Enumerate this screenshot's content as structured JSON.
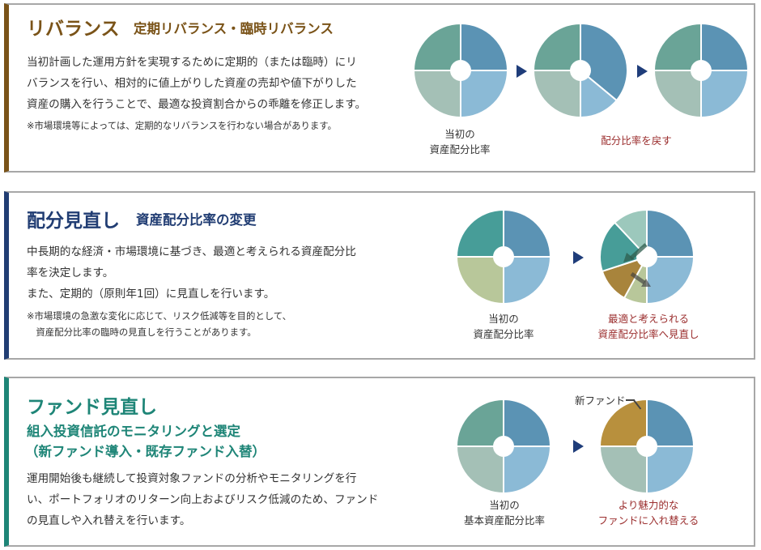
{
  "colors": {
    "teal": "#6aa497",
    "steel_blue": "#5b93b4",
    "light_blue": "#8bbad6",
    "light_green_gray": "#a4c0b6",
    "dark_teal": "#479d98",
    "olive_light": "#b8c79a",
    "mustard": "#b8903d",
    "brown_wedge": "#a8843c",
    "mint": "#9cc8bc",
    "arrow_navy": "#1f3d7a",
    "caption_red": "#9b2e2e"
  },
  "sections": [
    {
      "title": "リバランス",
      "subtitle": "定期リバランス・臨時リバランス",
      "title_color": "#7a5318",
      "body": [
        "当初計画した運用方針を実現するために定期的（または臨時）にリ",
        "バランスを行い、相対的に値上がりした資産の売却や値下がりした",
        "資産の購入を行うことで、最適な投資割合からの乖離を修正します。"
      ],
      "note": [
        "※市場環境等によっては、定期的なリバランスを行わない場合があります。"
      ],
      "captions": {
        "left": [
          "当初の",
          "資産配分比率"
        ],
        "right": [
          "配分比率を戻す"
        ]
      }
    },
    {
      "title": "配分見直し",
      "subtitle": "資産配分比率の変更",
      "title_color": "#213d73",
      "body": [
        "中長期的な経済・市場環境に基づき、最適と考えられる資産配分比",
        "率を決定します。",
        "また、定期的（原則年1回）に見直しを行います。"
      ],
      "note": [
        "※市場環境の急激な変化に応じて、リスク低減等を目的として、",
        "　資産配分比率の臨時の見直しを行うことがあります。"
      ],
      "captions": {
        "left": [
          "当初の",
          "資産配分比率"
        ],
        "right": [
          "最適と考えられる",
          "資産配分比率へ見直し"
        ]
      }
    },
    {
      "title": "ファンド見直し",
      "subtitle_lines": [
        "組入投資信託のモニタリングと選定",
        "（新ファンド導入・既存ファンド入替）"
      ],
      "title_color": "#1e8577",
      "body": [
        "運用開始後も継続して投資対象ファンドの分析やモニタリングを行",
        "い、ポートフォリオのリターン向上およびリスク低減のため、ファンド",
        "の見直しや入れ替えを行います。"
      ],
      "captions": {
        "left": [
          "当初の",
          "基本資産配分比率"
        ],
        "right": [
          "より魅力的な",
          "ファンドに入れ替える"
        ]
      },
      "new_fund_label": "新ファンド"
    }
  ],
  "pies": {
    "rebalance_initial": [
      {
        "color": "#5b93b4",
        "share": 0.25
      },
      {
        "color": "#8bbad6",
        "share": 0.25
      },
      {
        "color": "#a4c0b6",
        "share": 0.25
      },
      {
        "color": "#6aa497",
        "share": 0.25
      }
    ],
    "rebalance_drift": [
      {
        "color": "#5b93b4",
        "share": 0.36
      },
      {
        "color": "#8bbad6",
        "share": 0.14
      },
      {
        "color": "#a4c0b6",
        "share": 0.25
      },
      {
        "color": "#6aa497",
        "share": 0.25
      }
    ],
    "rebalance_restored": [
      {
        "color": "#5b93b4",
        "share": 0.25
      },
      {
        "color": "#8bbad6",
        "share": 0.25
      },
      {
        "color": "#a4c0b6",
        "share": 0.25
      },
      {
        "color": "#6aa497",
        "share": 0.25
      }
    ],
    "review_initial": [
      {
        "color": "#5b93b4",
        "share": 0.25
      },
      {
        "color": "#8bbad6",
        "share": 0.25
      },
      {
        "color": "#b8c79a",
        "share": 0.25
      },
      {
        "color": "#479d98",
        "share": 0.25
      }
    ],
    "review_changed": [
      {
        "color": "#5b93b4",
        "share": 0.25
      },
      {
        "color": "#8bbad6",
        "share": 0.25
      },
      {
        "color": "#b8c79a",
        "share": 0.08
      },
      {
        "color": "#a8843c",
        "share": 0.12
      },
      {
        "color": "#479d98",
        "share": 0.18
      },
      {
        "color": "#9cc8bc",
        "share": 0.12
      }
    ],
    "fund_initial": [
      {
        "color": "#5b93b4",
        "share": 0.25
      },
      {
        "color": "#8bbad6",
        "share": 0.25
      },
      {
        "color": "#a4c0b6",
        "share": 0.25
      },
      {
        "color": "#6aa497",
        "share": 0.25
      }
    ],
    "fund_replaced": [
      {
        "color": "#5b93b4",
        "share": 0.25
      },
      {
        "color": "#8bbad6",
        "share": 0.25
      },
      {
        "color": "#a4c0b6",
        "share": 0.25
      },
      {
        "color": "#b8903d",
        "share": 0.25
      }
    ]
  }
}
